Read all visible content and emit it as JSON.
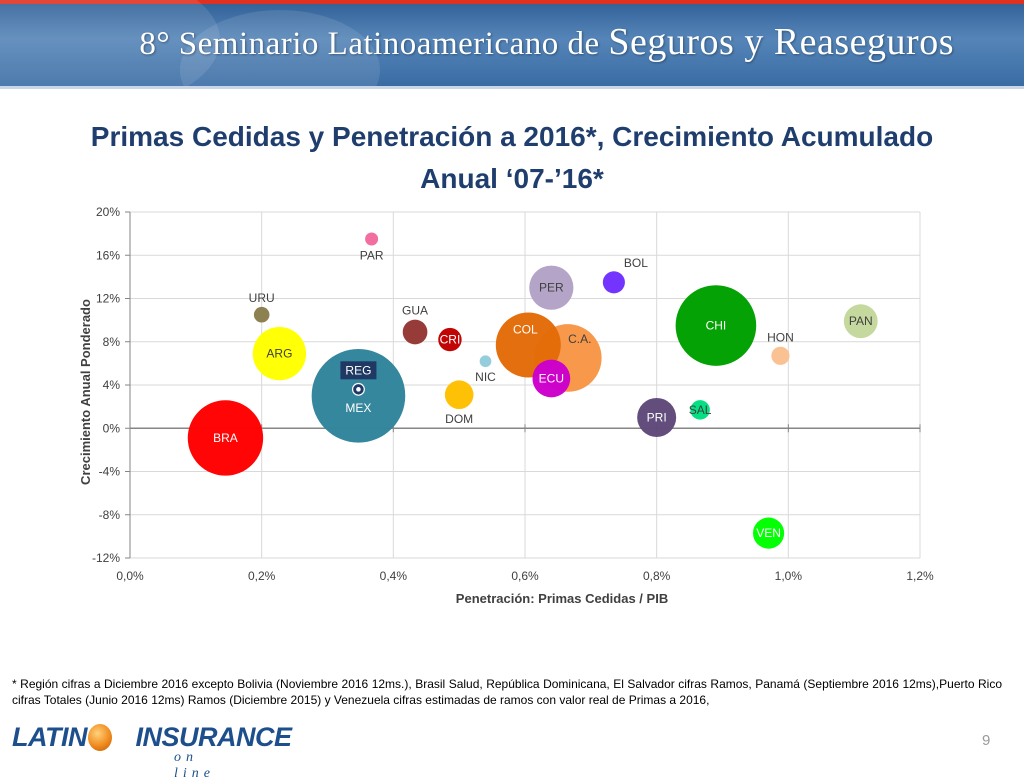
{
  "banner": {
    "title_prefix": "8° Seminario Latinoamericano de",
    "title_highlight": "Seguros y Reaseguros"
  },
  "slide": {
    "title_line1": "Primas Cedidas y Penetración a 2016*, Crecimiento Acumulado",
    "title_line2": "Anual ‘07-’16*",
    "footnote": "* Región cifras a Diciembre 2016 excepto Bolivia (Noviembre 2016 12ms.), Brasil Salud, República Dominicana, El Salvador cifras Ramos, Panamá (Septiembre 2016 12ms),Puerto Rico cifras Totales (Junio 2016 12ms) Ramos (Diciembre 2015) y Venezuela cifras estimadas de ramos con valor real de Primas a 2016,",
    "page_number": "9"
  },
  "logo": {
    "main_left": "LATINO",
    "main_right": "INSURANCE",
    "sub": "on line"
  },
  "chart_data": {
    "type": "scatter",
    "bubble": true,
    "xlabel": "Penetración: Primas Cedidas / PIB",
    "ylabel": "Crecimiento Anual Ponderado",
    "xlim": [
      0,
      1.2
    ],
    "ylim": [
      -12,
      20
    ],
    "x_ticks": [
      0,
      0.2,
      0.4,
      0.6,
      0.8,
      1.0,
      1.2
    ],
    "x_tick_labels": [
      "0,0%",
      "0,2%",
      "0,4%",
      "0,6%",
      "0,8%",
      "1,0%",
      "1,2%"
    ],
    "y_ticks": [
      -12,
      -8,
      -4,
      0,
      4,
      8,
      12,
      16,
      20
    ],
    "y_tick_labels": [
      "-12%",
      "-8%",
      "-4%",
      "0%",
      "4%",
      "8%",
      "12%",
      "16%",
      "20%"
    ],
    "grid": true,
    "points": [
      {
        "label": "BRA",
        "x": 0.145,
        "y": -0.9,
        "size": 5.8,
        "color": "#ff0000",
        "label_pos": "inside"
      },
      {
        "label": "URU",
        "x": 0.2,
        "y": 10.5,
        "size": 1.2,
        "color": "#8b7d4e",
        "label_pos": "above"
      },
      {
        "label": "ARG",
        "x": 0.227,
        "y": 6.9,
        "size": 4.1,
        "color": "#ffff00",
        "label_pos": "inside"
      },
      {
        "label": "PAR",
        "x": 0.367,
        "y": 17.5,
        "size": 1.0,
        "color": "#f26b9e",
        "label_pos": "below"
      },
      {
        "label": "MEX",
        "x": 0.347,
        "y": 3.0,
        "size": 7.2,
        "color": "#31859c",
        "label_pos": "inside-low"
      },
      {
        "label": "REG",
        "x": 0.347,
        "y": 3.6,
        "size": 0.9,
        "color": "#1f3864",
        "label_pos": "box-above"
      },
      {
        "label": "GUA",
        "x": 0.433,
        "y": 8.9,
        "size": 1.9,
        "color": "#953735",
        "label_pos": "above"
      },
      {
        "label": "CRI",
        "x": 0.486,
        "y": 8.2,
        "size": 1.8,
        "color": "#c00000",
        "label_pos": "inside"
      },
      {
        "label": "NIC",
        "x": 0.54,
        "y": 6.2,
        "size": 0.9,
        "color": "#92cddc",
        "label_pos": "below"
      },
      {
        "label": "DOM",
        "x": 0.5,
        "y": 3.1,
        "size": 2.2,
        "color": "#ffc000",
        "label_pos": "below"
      },
      {
        "label": "COL",
        "x": 0.605,
        "y": 7.7,
        "size": 5.0,
        "color": "#e36c09",
        "label_pos": "inside-top"
      },
      {
        "label": "C.A.",
        "x": 0.665,
        "y": 6.5,
        "size": 5.2,
        "color": "#f79646",
        "label_pos": "inside"
      },
      {
        "label": "PER",
        "x": 0.64,
        "y": 13.0,
        "size": 3.4,
        "color": "#b3a2c7",
        "label_pos": "inside"
      },
      {
        "label": "ECU",
        "x": 0.64,
        "y": 4.6,
        "size": 2.9,
        "color": "#cc00cc",
        "label_pos": "inside"
      },
      {
        "label": "BOL",
        "x": 0.735,
        "y": 13.5,
        "size": 1.7,
        "color": "#7030ff",
        "label_pos": "above-right"
      },
      {
        "label": "PRI",
        "x": 0.8,
        "y": 1.0,
        "size": 3.0,
        "color": "#5f497a",
        "label_pos": "inside"
      },
      {
        "label": "CHI",
        "x": 0.89,
        "y": 9.5,
        "size": 6.2,
        "color": "#00a000",
        "label_pos": "inside"
      },
      {
        "label": "SAL",
        "x": 0.866,
        "y": 1.7,
        "size": 1.5,
        "color": "#00e080",
        "label_pos": "inside"
      },
      {
        "label": "HON",
        "x": 0.988,
        "y": 6.7,
        "size": 1.4,
        "color": "#fac090",
        "label_pos": "above"
      },
      {
        "label": "PAN",
        "x": 1.11,
        "y": 9.9,
        "size": 2.6,
        "color": "#c4d79b",
        "label_pos": "inside"
      },
      {
        "label": "VEN",
        "x": 0.97,
        "y": -9.7,
        "size": 2.4,
        "color": "#00ff00",
        "label_pos": "inside"
      }
    ]
  }
}
